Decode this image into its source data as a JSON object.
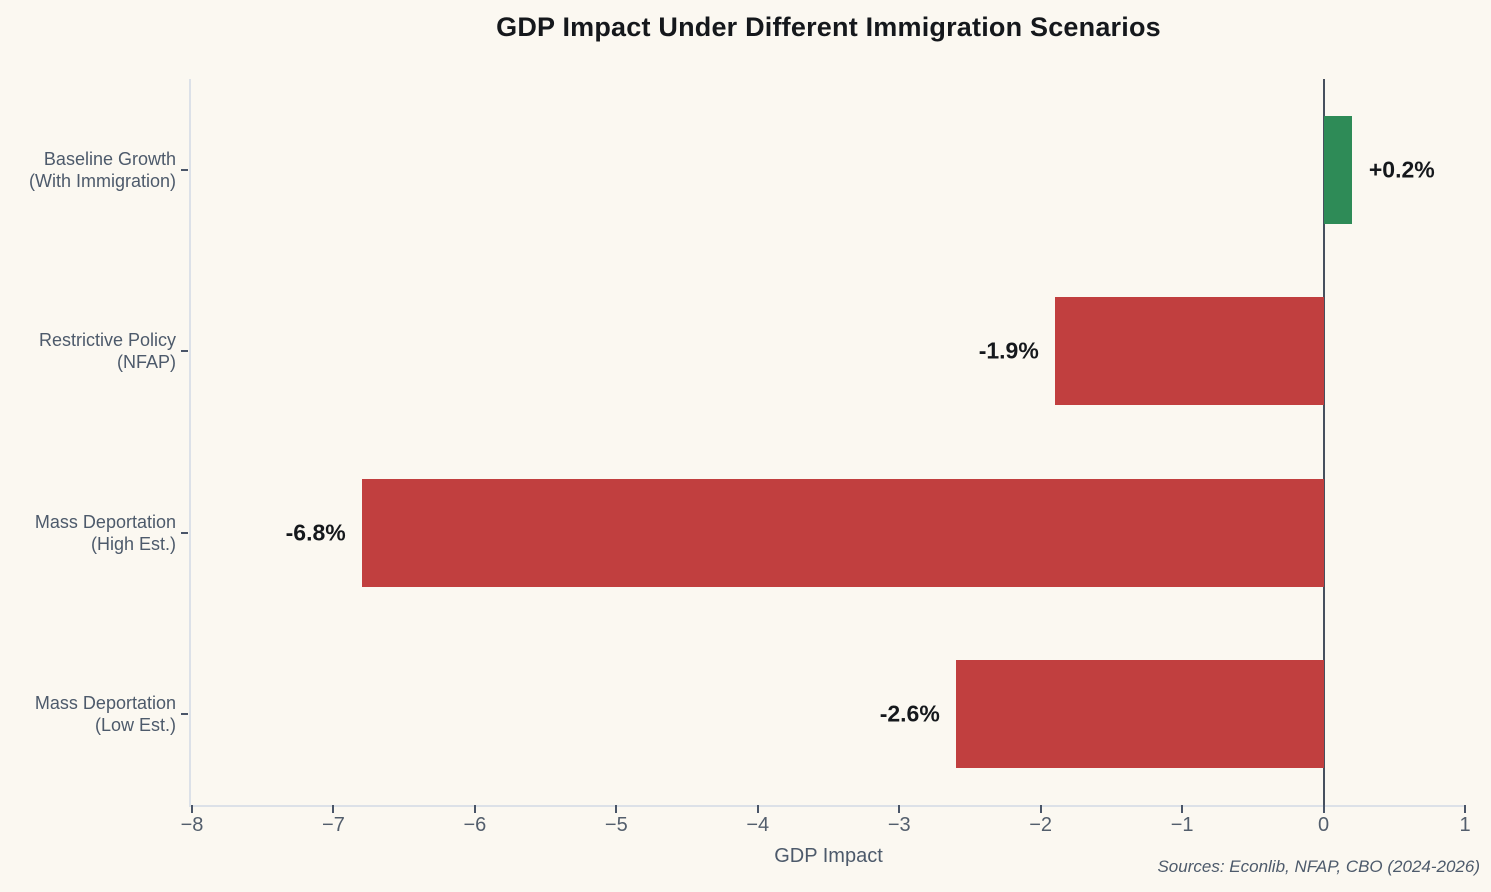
{
  "page": {
    "background_color": "#fbf8f1"
  },
  "chart_data": {
    "type": "bar",
    "orientation": "horizontal",
    "title": "GDP Impact Under Different Immigration Scenarios",
    "xlabel": "GDP Impact",
    "source_note": "Sources: Econlib, NFAP, CBO (2024-2026)",
    "xlim": [
      -8,
      1
    ],
    "x_ticks": [
      -8,
      -7,
      -6,
      -5,
      -4,
      -3,
      -2,
      -1,
      0,
      1
    ],
    "x_tick_labels": [
      "−8",
      "−7",
      "−6",
      "−5",
      "−4",
      "−3",
      "−2",
      "−1",
      "0",
      "1"
    ],
    "grid": false,
    "legend": false,
    "categories": [
      "Baseline Growth (With Immigration)",
      "Restrictive Policy (NFAP)",
      "Mass Deportation (High Est.)",
      "Mass Deportation (Low Est.)"
    ],
    "category_lines": [
      [
        "Baseline Growth",
        "(With Immigration)"
      ],
      [
        "Restrictive Policy",
        "(NFAP)"
      ],
      [
        "Mass Deportation",
        "(High Est.)"
      ],
      [
        "Mass Deportation",
        "(Low Est.)"
      ]
    ],
    "values": [
      0.2,
      -1.9,
      -6.8,
      -2.6
    ],
    "value_labels": [
      "+0.2%",
      "-1.9%",
      "-6.8%",
      "-2.6%"
    ],
    "bar_colors": [
      "#2e8b57",
      "#c13f3f",
      "#c13f3f",
      "#c13f3f"
    ],
    "colors": {
      "positive_bar": "#2e8b57",
      "negative_bar": "#c13f3f",
      "axis_line": "#dce1e8",
      "zero_line": "#46505e",
      "tick_text": "#535e6c",
      "category_text": "#4d5a6b",
      "value_text": "#15181c",
      "title_text": "#15181c",
      "background": "#fbf8f1"
    }
  }
}
